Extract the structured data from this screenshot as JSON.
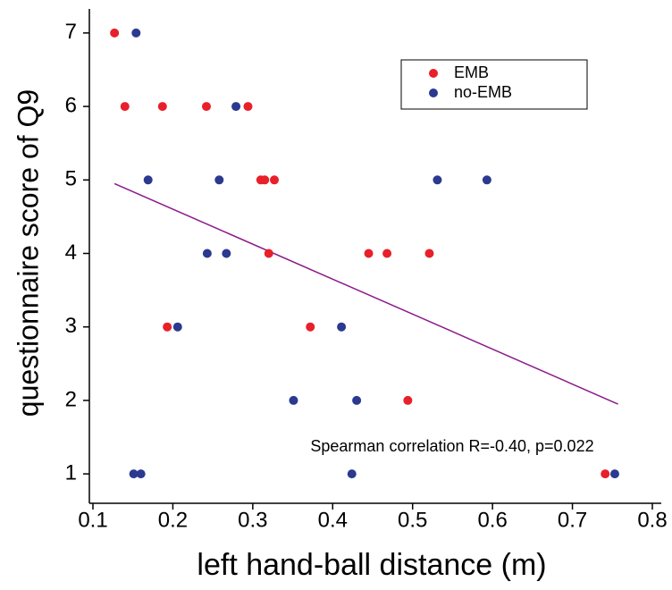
{
  "chart_data": {
    "type": "scatter",
    "xlabel": "left hand-ball distance (m)",
    "ylabel": "questionnaire score of Q9",
    "annotation": "Spearman correlation R=-0.40, p=0.022",
    "xlim": [
      0.1,
      0.8
    ],
    "xticks": [
      0.1,
      0.2,
      0.3,
      0.4,
      0.5,
      0.6,
      0.7,
      0.8
    ],
    "ylim": [
      0.6,
      7.4
    ],
    "yticks": [
      1,
      2,
      3,
      4,
      5,
      6,
      7
    ],
    "legend": "top right",
    "series": [
      {
        "name": "EMB",
        "color": "#e8202a",
        "x": [
          0.127,
          0.14,
          0.187,
          0.242,
          0.294,
          0.31,
          0.315,
          0.327,
          0.32,
          0.445,
          0.468,
          0.521,
          0.193,
          0.372,
          0.494,
          0.741
        ],
        "y": [
          7,
          6,
          6,
          6,
          6,
          5,
          5,
          5,
          4,
          4,
          4,
          4,
          3,
          3,
          2,
          1
        ]
      },
      {
        "name": "no-EMB",
        "color": "#2b3990",
        "x": [
          0.154,
          0.279,
          0.169,
          0.258,
          0.531,
          0.593,
          0.243,
          0.267,
          0.206,
          0.411,
          0.351,
          0.43,
          0.151,
          0.16,
          0.424,
          0.753
        ],
        "y": [
          7,
          6,
          5,
          5,
          5,
          5,
          4,
          4,
          3,
          3,
          2,
          2,
          1,
          1,
          1,
          1
        ]
      }
    ],
    "trend": {
      "color": "#8b1a8b",
      "x": [
        0.127,
        0.757
      ],
      "y": [
        4.95,
        1.95
      ]
    }
  }
}
